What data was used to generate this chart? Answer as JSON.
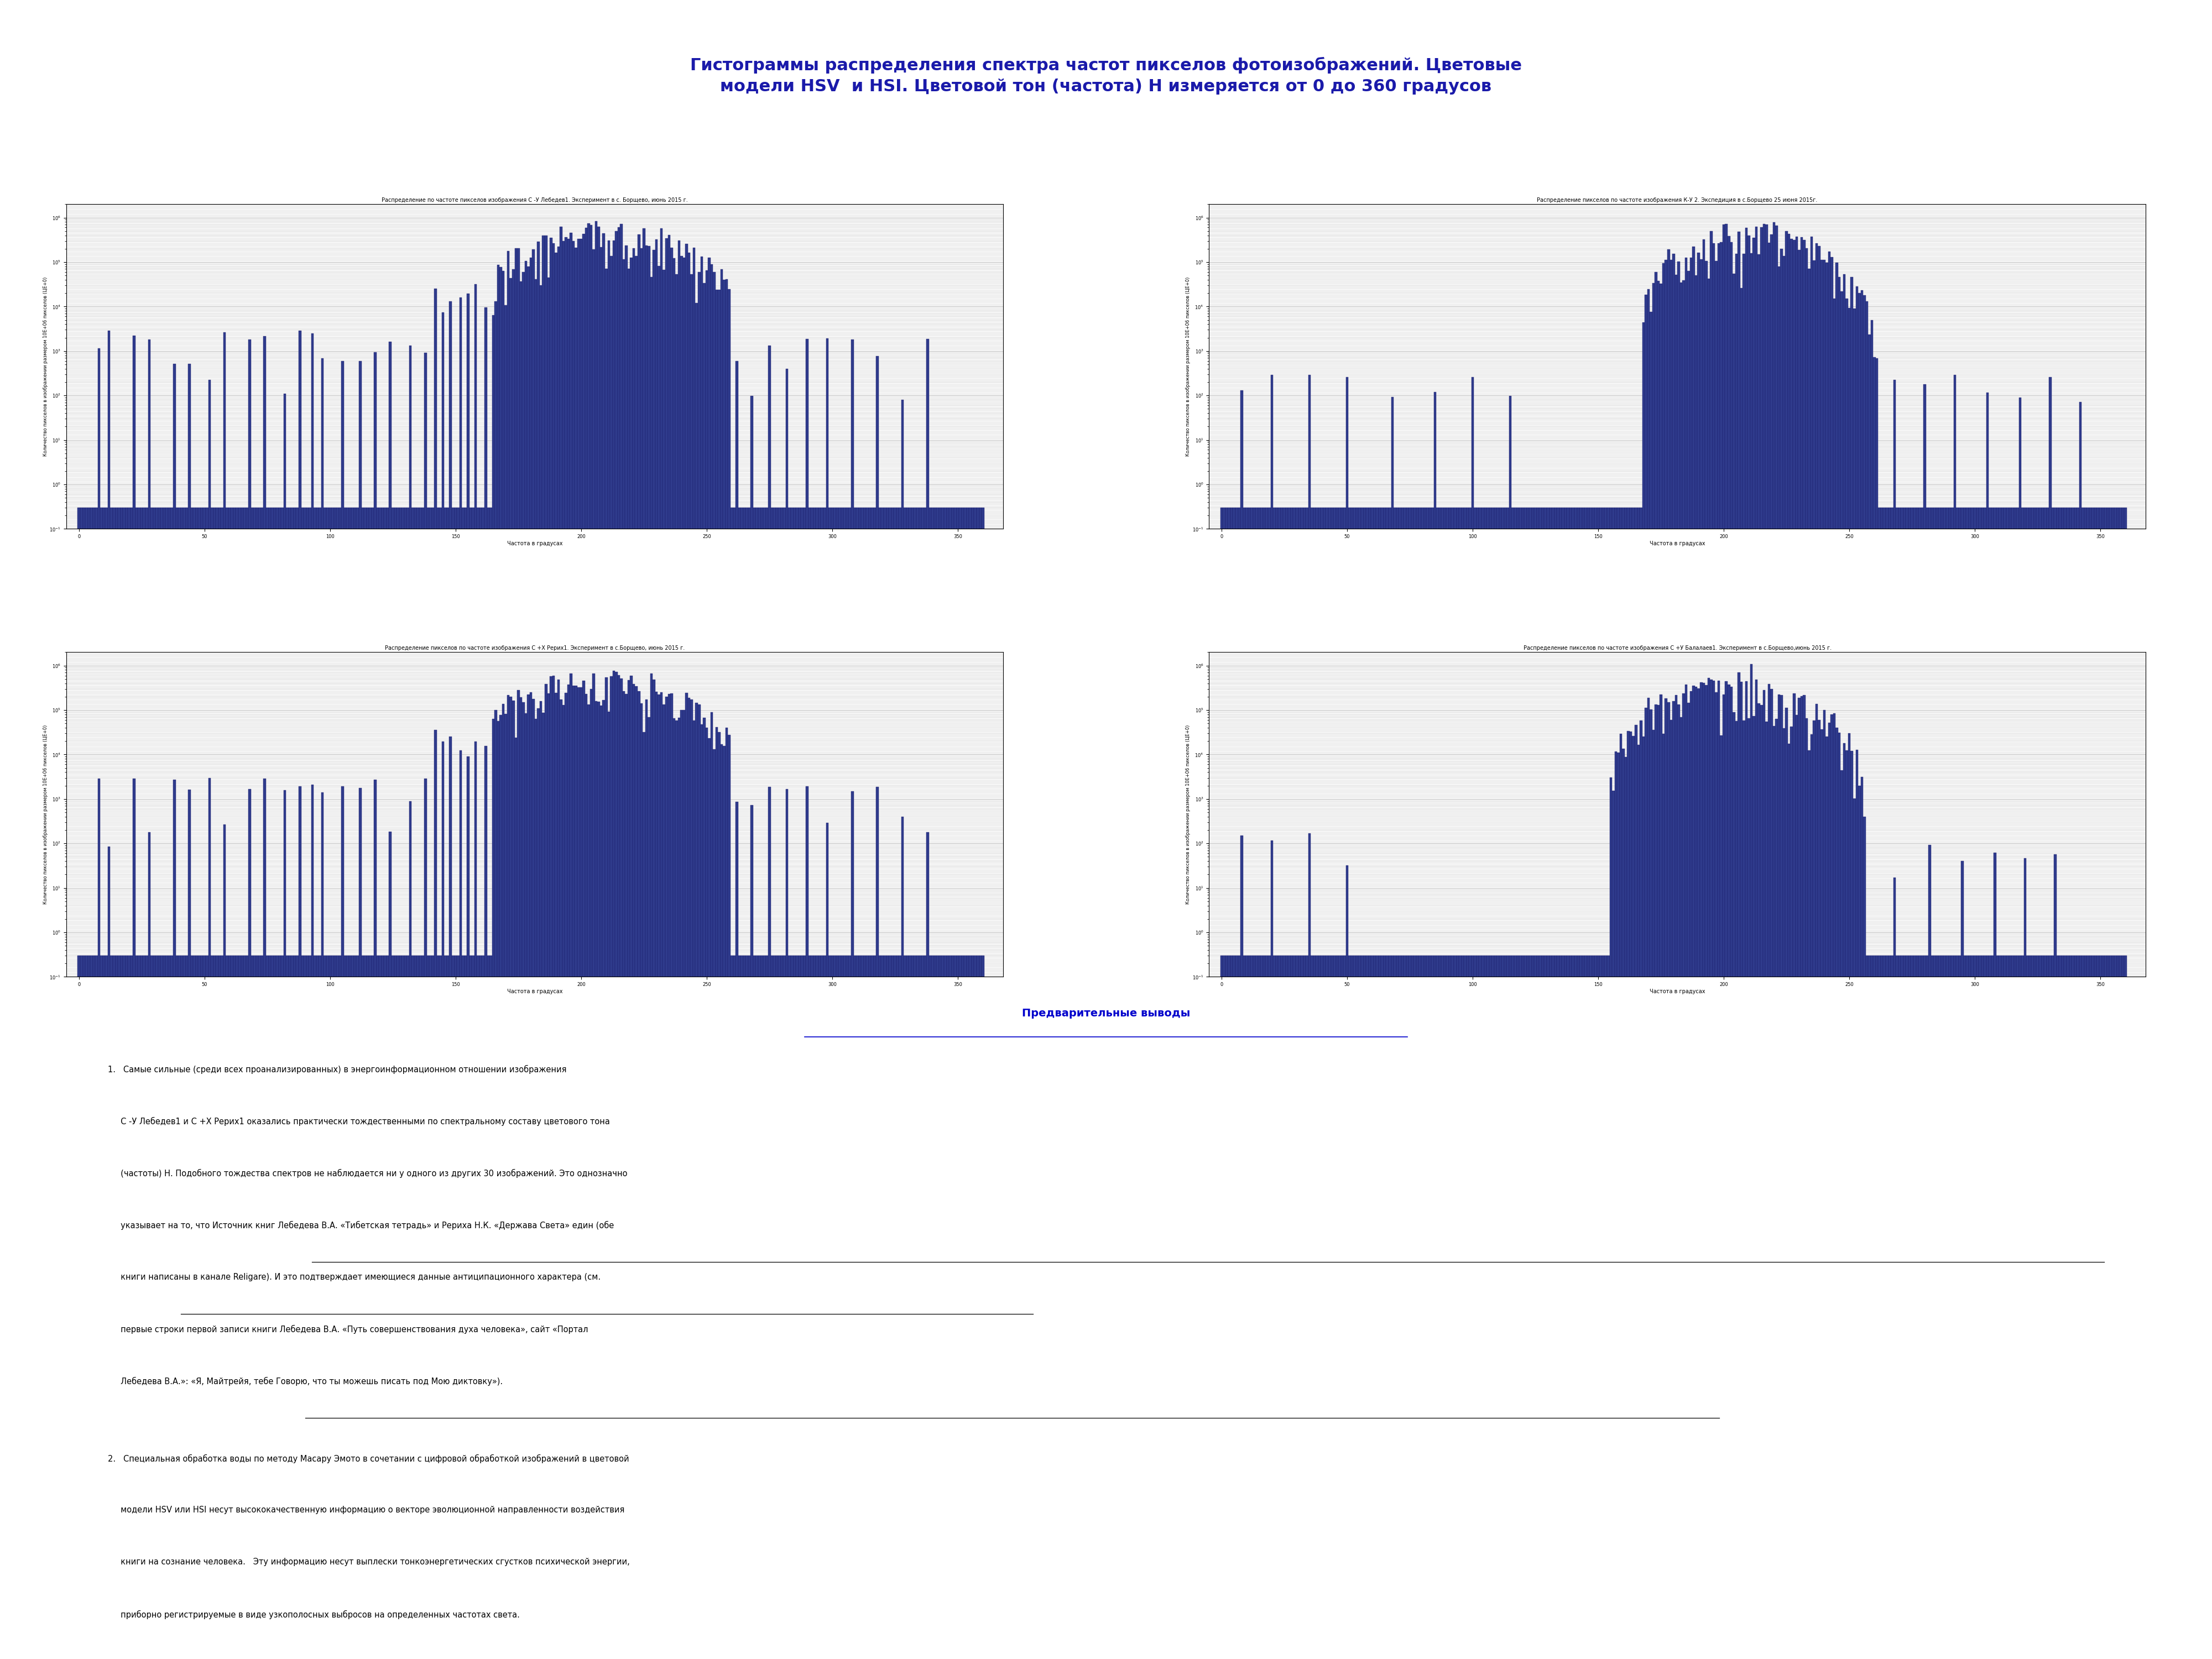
{
  "title_line1": "Гистограммы распределения спектра частот пикселов фотоизображений. Цветовые",
  "title_line2": "модели HSV  и HSI. Цветовой тон (частота) Н измеряется от 0 до 360 градусов",
  "title_color": "#1a1aaa",
  "title_fontsize": 22,
  "subplot_titles": [
    "Распределение по частоте пикселов изображения С -У Лебедев1. Эксперимент в с. Борщево, июнь 2015 г.",
    "Распределение пикселов по частоте изображения К-У 2. Экспедиция в с.Борщево 25 июня 2015г.",
    "Распределение пикселов по частоте изображения С +Х Рерих1. Эксперимент в с.Борщево, июнь 2015 г.",
    "Распределение пикселов по частоте изображения С +У Балалаев1. Эксперимент в с.Борщево,июнь 2015 г."
  ],
  "subplot_title_fontsize": 7,
  "xlabel": "Частота в градусах",
  "ylabel": "Количество пикселов в изображении размером 10Е+06 пикселов (ЦЕ+0)",
  "ylabel_fontsize": 6,
  "xlabel_fontsize": 7,
  "bar_color": "#2f3b8c",
  "bar_edge_color": "#1a1a6a",
  "section_header": "Предварительные выводы",
  "section_header_color": "#0000cc",
  "body_text_fontsize": 10.5,
  "body_text_color": "#000000",
  "paragraph1_lines": [
    "1.   Самые сильные (среди всех проанализированных) в энергоинформационном отношении изображения",
    "     С -У Лебедев1 и С +Х Рерих1 оказались практически тождественными по спектральному составу цветового тона",
    "     (частоты) Н. Подобного тождества спектров не наблюдается ни у одного из других 30 изображений. Это однозначно",
    "     указывает на то, что Источник книг Лебедева В.А. «Тибетская тетрадь» и Рериха Н.К. «Держава Света» един (обе",
    "     книги написаны в канале Religare). И это подтверждает имеющиеся данные антиципационного характера (см.",
    "     первые строки первой записи книги Лебедева В.А. «Путь совершенствования духа человека», сайт «Портал",
    "     Лебедева В.А.»: «Я, Майтрейя, тебе Говорю, что ты можешь писать под Мою диктовку»)."
  ],
  "paragraph2_lines": [
    "2.   Специальная обработка воды по методу Масару Эмото в сочетании с цифровой обработкой изображений в цветовой",
    "     модели HSV или HSI несут высококачественную информацию о векторе эволюционной направленности воздействия",
    "     книги на сознание человека.   Эту информацию несут выплески тонкоэнергетических сгустков психической энергии,",
    "     приборно регистрируемые в виде узкополосных выбросов на определенных частотах света."
  ]
}
